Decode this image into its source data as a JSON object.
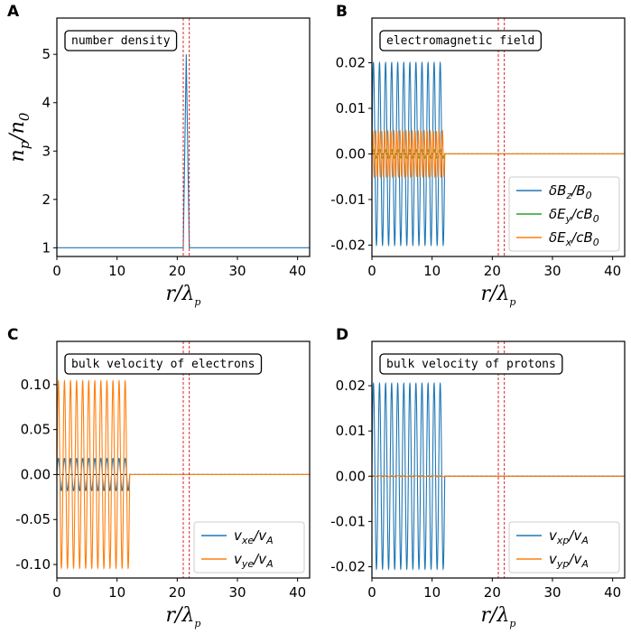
{
  "figure": {
    "colors": {
      "blue": "#1f77b4",
      "orange": "#ff7f0e",
      "green": "#2ca02c",
      "red_dash": "#d62728",
      "black": "#000000"
    }
  },
  "chart_data": [
    {
      "id": "A",
      "panel_label": "A",
      "type": "line",
      "title_box": "number density",
      "xlabel": "r/λp",
      "ylabel": "np/n0",
      "xlim": [
        0,
        42
      ],
      "ylim": [
        0.82,
        5.75
      ],
      "xticks": [
        0,
        10,
        20,
        30,
        40
      ],
      "yticks": [
        1,
        2,
        3,
        4,
        5
      ],
      "ytick_labels": [
        "1",
        "2",
        "3",
        "4",
        "5"
      ],
      "vlines": [
        21,
        22
      ],
      "series": [
        {
          "name": "n_p/n_0",
          "color": "#1f77b4",
          "kind": "profile",
          "x": [
            0,
            21.0,
            21.5,
            22.0,
            42
          ],
          "y": [
            1,
            1,
            5,
            1,
            1
          ]
        }
      ]
    },
    {
      "id": "B",
      "panel_label": "B",
      "type": "line",
      "title_box": "electromagnetic field",
      "xlabel": "r/λp",
      "xlim": [
        0,
        42
      ],
      "ylim": [
        -0.0225,
        0.0298
      ],
      "xticks": [
        0,
        10,
        20,
        30,
        40
      ],
      "yticks": [
        -0.02,
        -0.01,
        0.0,
        0.01,
        0.02
      ],
      "ytick_labels": [
        "-0.02",
        "-0.01",
        "0.00",
        "0.01",
        "0.02"
      ],
      "vlines": [
        21,
        22
      ],
      "legend_position": "lower-right",
      "series": [
        {
          "name": "δBz/B0",
          "legend_main": "δB",
          "legend_sub": "z",
          "legend_rest": "/B",
          "legend_sub2": "0",
          "color": "#1f77b4",
          "kind": "wave",
          "amplitude": 0.02,
          "cycles": 12,
          "x_end": 12.1
        },
        {
          "name": "δEy/cB0",
          "legend_main": "δE",
          "legend_sub": "y",
          "legend_rest": "/cB",
          "legend_sub2": "0",
          "color": "#2ca02c",
          "kind": "wave",
          "amplitude": 0.001,
          "cycles": 12,
          "x_end": 12.1
        },
        {
          "name": "δEx/cB0",
          "legend_main": "δE",
          "legend_sub": "x",
          "legend_rest": "/cB",
          "legend_sub2": "0",
          "color": "#ff7f0e",
          "kind": "wave",
          "amplitude": 0.005,
          "cycles": 24,
          "x_end": 12.1
        }
      ]
    },
    {
      "id": "C",
      "panel_label": "C",
      "type": "line",
      "title_box": "bulk velocity of electrons",
      "xlabel": "r/λp",
      "xlim": [
        0,
        42
      ],
      "ylim": [
        -0.115,
        0.148
      ],
      "xticks": [
        0,
        10,
        20,
        30,
        40
      ],
      "yticks": [
        -0.1,
        -0.05,
        0.0,
        0.05,
        0.1
      ],
      "ytick_labels": [
        "-0.10",
        "-0.05",
        "0.00",
        "0.05",
        "0.10"
      ],
      "vlines": [
        21,
        22
      ],
      "legend_position": "lower-right",
      "series": [
        {
          "name": "vxe/vA",
          "legend_main": "v",
          "legend_sub": "xe",
          "legend_rest": "/v",
          "legend_sub2": "A",
          "color": "#1f77b4",
          "kind": "wave",
          "amplitude": 0.018,
          "cycles": 12,
          "x_end": 12.1
        },
        {
          "name": "vye/vA",
          "legend_main": "v",
          "legend_sub": "ye",
          "legend_rest": "/v",
          "legend_sub2": "A",
          "color": "#ff7f0e",
          "kind": "wave",
          "amplitude": 0.104,
          "cycles": 12,
          "x_end": 12.1
        }
      ]
    },
    {
      "id": "D",
      "panel_label": "D",
      "type": "line",
      "title_box": "bulk velocity of protons",
      "xlabel": "r/λp",
      "xlim": [
        0,
        42
      ],
      "ylim": [
        -0.0225,
        0.0298
      ],
      "xticks": [
        0,
        10,
        20,
        30,
        40
      ],
      "yticks": [
        -0.02,
        -0.01,
        0.0,
        0.01,
        0.02
      ],
      "ytick_labels": [
        "-0.02",
        "-0.01",
        "0.00",
        "0.01",
        "0.02"
      ],
      "vlines": [
        21,
        22
      ],
      "legend_position": "lower-right",
      "series": [
        {
          "name": "vxp/vA",
          "legend_main": "v",
          "legend_sub": "xp",
          "legend_rest": "/v",
          "legend_sub2": "A",
          "color": "#1f77b4",
          "kind": "wave",
          "amplitude": 0.0205,
          "cycles": 12,
          "x_end": 12.1
        },
        {
          "name": "vyp/vA",
          "legend_main": "v",
          "legend_sub": "yp",
          "legend_rest": "/v",
          "legend_sub2": "A",
          "color": "#ff7f0e",
          "kind": "wave",
          "amplitude": 0.0001,
          "cycles": 12,
          "x_end": 12.1
        }
      ]
    }
  ]
}
